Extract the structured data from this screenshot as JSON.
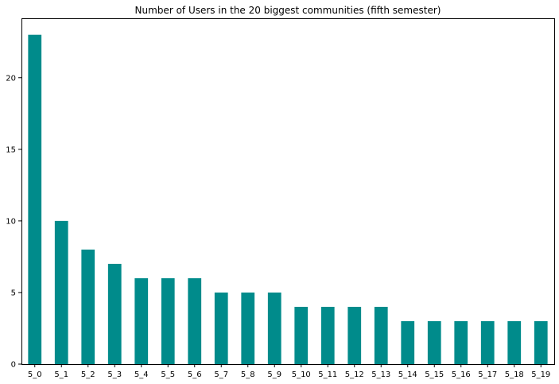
{
  "chart_data": {
    "type": "bar",
    "title": "Number of Users in the 20 biggest communities (fifth semester)",
    "xlabel": "",
    "ylabel": "",
    "categories": [
      "5_0",
      "5_1",
      "5_2",
      "5_3",
      "5_4",
      "5_5",
      "5_6",
      "5_7",
      "5_8",
      "5_9",
      "5_10",
      "5_11",
      "5_12",
      "5_13",
      "5_14",
      "5_15",
      "5_16",
      "5_17",
      "5_18",
      "5_19"
    ],
    "values": [
      23,
      10,
      8,
      7,
      6,
      6,
      6,
      5,
      5,
      5,
      4,
      4,
      4,
      4,
      3,
      3,
      3,
      3,
      3,
      3
    ],
    "ylim": [
      0,
      24.15
    ],
    "yticks": [
      0,
      5,
      10,
      15,
      20
    ],
    "bar_color": "#008b8b",
    "grid": false,
    "legend": "none"
  }
}
